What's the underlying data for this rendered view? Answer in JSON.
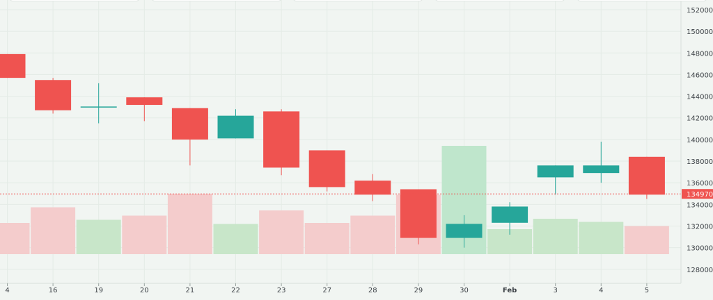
{
  "chart_data": {
    "type": "candlestick",
    "x_tick_labels": [
      "4",
      "16",
      "19",
      "20",
      "21",
      "22",
      "23",
      "27",
      "28",
      "29",
      "30",
      "Feb",
      "3",
      "4",
      "5"
    ],
    "y_tick_labels": [
      "128000.0",
      "130000.0",
      "132000.0",
      "134000.0",
      "136000.0",
      "138000.0",
      "140000.0",
      "142000.0",
      "144000.0",
      "146000.0",
      "148000.0",
      "150000.0",
      "152000.0"
    ],
    "ylim": [
      126700,
      152900
    ],
    "candles": [
      {
        "label": "4",
        "open": 147900,
        "high": 147900,
        "low": 145700,
        "close": 145700
      },
      {
        "label": "16",
        "open": 145500,
        "high": 145700,
        "low": 142400,
        "close": 142700
      },
      {
        "label": "19",
        "open": 143000,
        "high": 145200,
        "low": 141500,
        "close": 143000
      },
      {
        "label": "20",
        "open": 143900,
        "high": 143900,
        "low": 141700,
        "close": 143200
      },
      {
        "label": "21",
        "open": 142900,
        "high": 142900,
        "low": 137600,
        "close": 140000
      },
      {
        "label": "22",
        "open": 140100,
        "high": 142800,
        "low": 140100,
        "close": 142200
      },
      {
        "label": "23",
        "open": 142600,
        "high": 142800,
        "low": 136700,
        "close": 137400
      },
      {
        "label": "27",
        "open": 139000,
        "high": 139000,
        "low": 135200,
        "close": 135600
      },
      {
        "label": "28",
        "open": 136200,
        "high": 136800,
        "low": 134300,
        "close": 134900
      },
      {
        "label": "29",
        "open": 135400,
        "high": 135400,
        "low": 130300,
        "close": 130900
      },
      {
        "label": "30",
        "open": 130900,
        "high": 133000,
        "low": 130000,
        "close": 132200
      },
      {
        "label": "Feb",
        "open": 132300,
        "high": 134200,
        "low": 131200,
        "close": 133800
      },
      {
        "label": "3",
        "open": 136500,
        "high": 137600,
        "low": 134900,
        "close": 137600
      },
      {
        "label": "4",
        "open": 136900,
        "high": 139800,
        "low": 136000,
        "close": 137600
      },
      {
        "label": "5",
        "open": 138400,
        "high": 138400,
        "low": 134500,
        "close": 134900
      }
    ],
    "volume": [
      1.5,
      2.25,
      1.65,
      1.85,
      2.9,
      1.45,
      2.1,
      1.5,
      1.85,
      2.85,
      5.2,
      1.2,
      1.7,
      1.55,
      1.35
    ],
    "volume_highlight_index": 10,
    "last_price_label": "134970.0",
    "last_price": 134970,
    "colors": {
      "up": "#26a69a",
      "down": "#ef5350",
      "up_volume": "#c8e6c9",
      "down_volume": "#f4cccc",
      "volume_highlight": "#bfe6cc",
      "price_line": "#ef5350",
      "background": "#f1f5f2",
      "grid": "#e4ebe6",
      "text": "#3a3f44"
    },
    "grid": true
  }
}
